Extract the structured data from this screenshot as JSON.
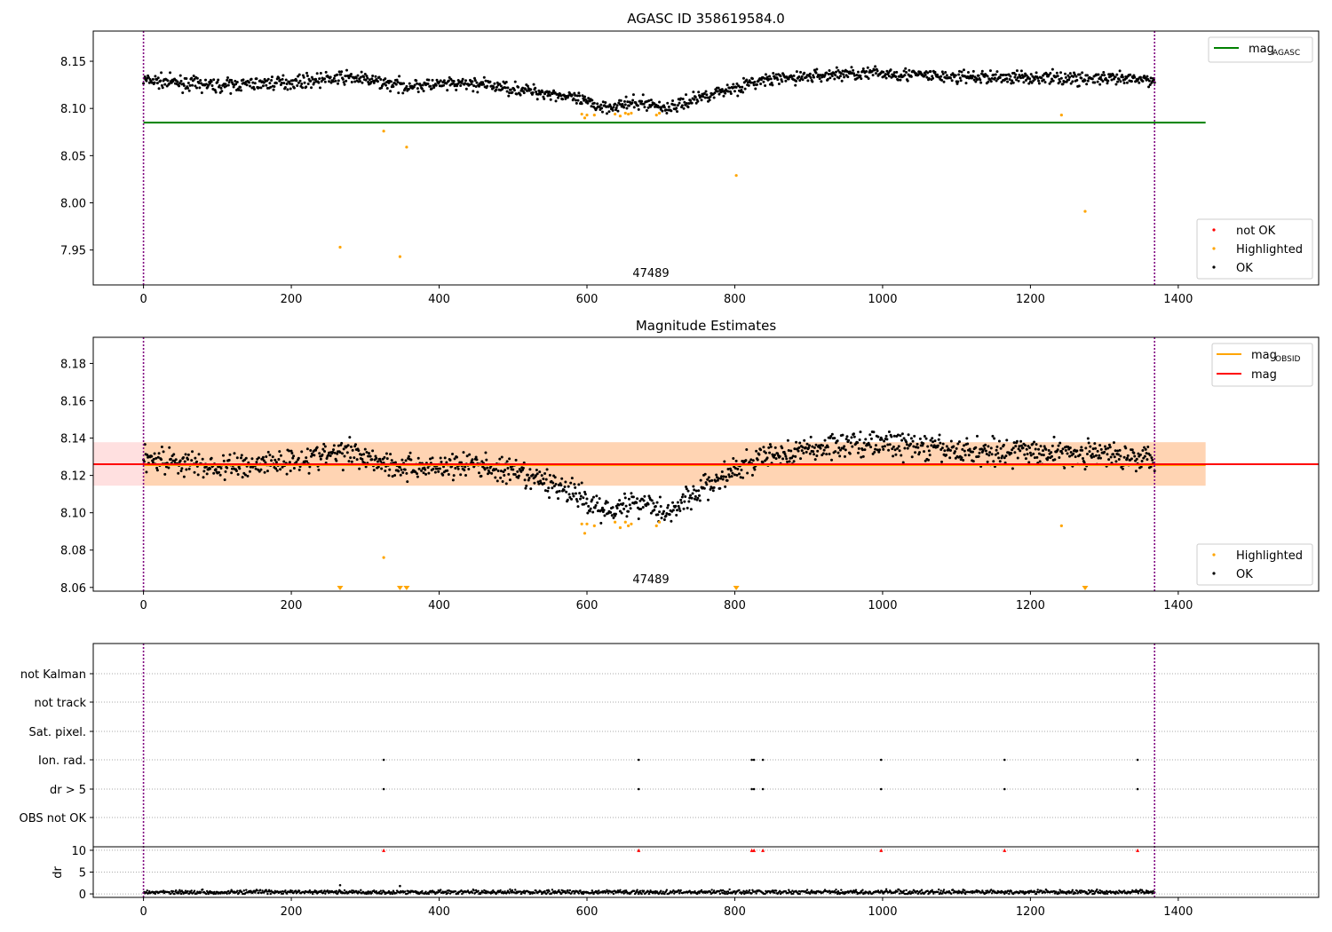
{
  "chart_data": [
    {
      "type": "scatter",
      "title": "AGASC ID 358619584.0",
      "obsid_label": "47489",
      "xlim": [
        -68,
        1590
      ],
      "ylim": [
        7.913,
        8.182
      ],
      "xticks": [
        0,
        200,
        400,
        600,
        800,
        1000,
        1200,
        1400
      ],
      "yticks": [
        7.95,
        8.0,
        8.05,
        8.1,
        8.15
      ],
      "ytick_labels": [
        "7.95",
        "8.00",
        "8.05",
        "8.10",
        "8.15"
      ],
      "obs_start": 0,
      "obs_end": 1368,
      "mag_agasc": 8.085,
      "mag_agasc_xrange": [
        0,
        1437
      ],
      "legend_lines": [
        {
          "label": "mag",
          "sub": "AGASC",
          "color": "#008000"
        }
      ],
      "legend_points": [
        {
          "label": "not OK",
          "color": "#ff0000"
        },
        {
          "label": "Highlighted",
          "color": "#ffa500"
        },
        {
          "label": "OK",
          "color": "#000000"
        }
      ],
      "highlighted_points": [
        {
          "x": 266,
          "y": 7.953
        },
        {
          "x": 325,
          "y": 8.076
        },
        {
          "x": 347,
          "y": 7.943
        },
        {
          "x": 356,
          "y": 8.059
        },
        {
          "x": 593,
          "y": 8.094
        },
        {
          "x": 597,
          "y": 8.09
        },
        {
          "x": 600,
          "y": 8.093
        },
        {
          "x": 610,
          "y": 8.093
        },
        {
          "x": 638,
          "y": 8.094
        },
        {
          "x": 645,
          "y": 8.092
        },
        {
          "x": 652,
          "y": 8.095
        },
        {
          "x": 656,
          "y": 8.094
        },
        {
          "x": 660,
          "y": 8.095
        },
        {
          "x": 694,
          "y": 8.093
        },
        {
          "x": 698,
          "y": 8.095
        },
        {
          "x": 802,
          "y": 8.029
        },
        {
          "x": 1242,
          "y": 8.093
        },
        {
          "x": 1274,
          "y": 7.991
        }
      ],
      "ok_series": {
        "x_range": [
          0,
          1368
        ],
        "profile": [
          [
            0,
            8.13
          ],
          [
            100,
            8.124
          ],
          [
            200,
            8.128
          ],
          [
            280,
            8.133
          ],
          [
            350,
            8.124
          ],
          [
            450,
            8.126
          ],
          [
            560,
            8.115
          ],
          [
            620,
            8.102
          ],
          [
            680,
            8.106
          ],
          [
            710,
            8.1
          ],
          [
            760,
            8.114
          ],
          [
            840,
            8.13
          ],
          [
            950,
            8.137
          ],
          [
            1010,
            8.137
          ],
          [
            1100,
            8.133
          ],
          [
            1200,
            8.133
          ],
          [
            1368,
            8.13
          ]
        ]
      }
    },
    {
      "type": "scatter",
      "title": "Magnitude Estimates",
      "obsid_label": "47489",
      "xlim": [
        -68,
        1590
      ],
      "ylim": [
        8.058,
        8.194
      ],
      "xticks": [
        0,
        200,
        400,
        600,
        800,
        1000,
        1200,
        1400
      ],
      "yticks": [
        8.06,
        8.08,
        8.1,
        8.12,
        8.14,
        8.16,
        8.18
      ],
      "ytick_labels": [
        "8.06",
        "8.08",
        "8.10",
        "8.12",
        "8.14",
        "8.16",
        "8.18"
      ],
      "obs_start": 0,
      "obs_end": 1368,
      "mag": 8.126,
      "mag_band": [
        8.1145,
        8.1378
      ],
      "mag_obsid": 8.1255,
      "mag_obsid_band": [
        8.1145,
        8.1378
      ],
      "mag_obsid_xrange": [
        0,
        1437
      ],
      "legend_lines": [
        {
          "label": "mag",
          "sub": "OBSID",
          "color": "#ffa500"
        },
        {
          "label": "mag",
          "sub": "",
          "color": "#ff0000"
        }
      ],
      "legend_points": [
        {
          "label": "Highlighted",
          "color": "#ffa500"
        },
        {
          "label": "OK",
          "color": "#000000"
        }
      ],
      "highlighted_points": [
        {
          "x": 325,
          "y": 8.076
        },
        {
          "x": 593,
          "y": 8.094
        },
        {
          "x": 597,
          "y": 8.089
        },
        {
          "x": 600,
          "y": 8.094
        },
        {
          "x": 610,
          "y": 8.093
        },
        {
          "x": 638,
          "y": 8.095
        },
        {
          "x": 645,
          "y": 8.092
        },
        {
          "x": 652,
          "y": 8.095
        },
        {
          "x": 656,
          "y": 8.093
        },
        {
          "x": 660,
          "y": 8.094
        },
        {
          "x": 694,
          "y": 8.093
        },
        {
          "x": 698,
          "y": 8.095
        },
        {
          "x": 1242,
          "y": 8.093
        }
      ],
      "out_of_range_markers": [
        266,
        347,
        356,
        802,
        1274
      ],
      "ok_series": {
        "x_range": [
          0,
          1368
        ],
        "profile": [
          [
            0,
            8.13
          ],
          [
            100,
            8.124
          ],
          [
            200,
            8.128
          ],
          [
            280,
            8.133
          ],
          [
            350,
            8.124
          ],
          [
            450,
            8.126
          ],
          [
            560,
            8.115
          ],
          [
            620,
            8.102
          ],
          [
            680,
            8.106
          ],
          [
            710,
            8.1
          ],
          [
            760,
            8.114
          ],
          [
            840,
            8.13
          ],
          [
            950,
            8.137
          ],
          [
            1010,
            8.137
          ],
          [
            1100,
            8.133
          ],
          [
            1200,
            8.133
          ],
          [
            1368,
            8.13
          ]
        ]
      }
    },
    {
      "type": "scatter",
      "title": "",
      "xlim": [
        -68,
        1590
      ],
      "xticks": [
        0,
        200,
        400,
        600,
        800,
        1000,
        1200,
        1400
      ],
      "obs_start": 0,
      "obs_end": 1368,
      "flag_rows": [
        "not Kalman",
        "not track",
        "Sat. pixel.",
        "Ion. rad.",
        "dr > 5",
        "OBS not OK"
      ],
      "flag_events": {
        "Ion. rad.": [
          325,
          670,
          823,
          826,
          838,
          998,
          1165,
          1345
        ],
        "dr > 5": [
          325,
          670,
          823,
          826,
          838,
          998,
          1165,
          1345
        ]
      },
      "dr_ylabel": "dr",
      "dr_yticks": [
        0,
        5,
        10
      ],
      "dr_ylim": [
        -0.8,
        10.8
      ],
      "dr_clipped_markers": [
        325,
        670,
        823,
        826,
        838,
        998,
        1165,
        1345
      ],
      "dr_series": {
        "x_range": [
          0,
          1368
        ],
        "baseline": 0.4,
        "spikes": [
          {
            "x": 266,
            "y": 2.0
          },
          {
            "x": 347,
            "y": 1.8
          }
        ]
      }
    }
  ]
}
